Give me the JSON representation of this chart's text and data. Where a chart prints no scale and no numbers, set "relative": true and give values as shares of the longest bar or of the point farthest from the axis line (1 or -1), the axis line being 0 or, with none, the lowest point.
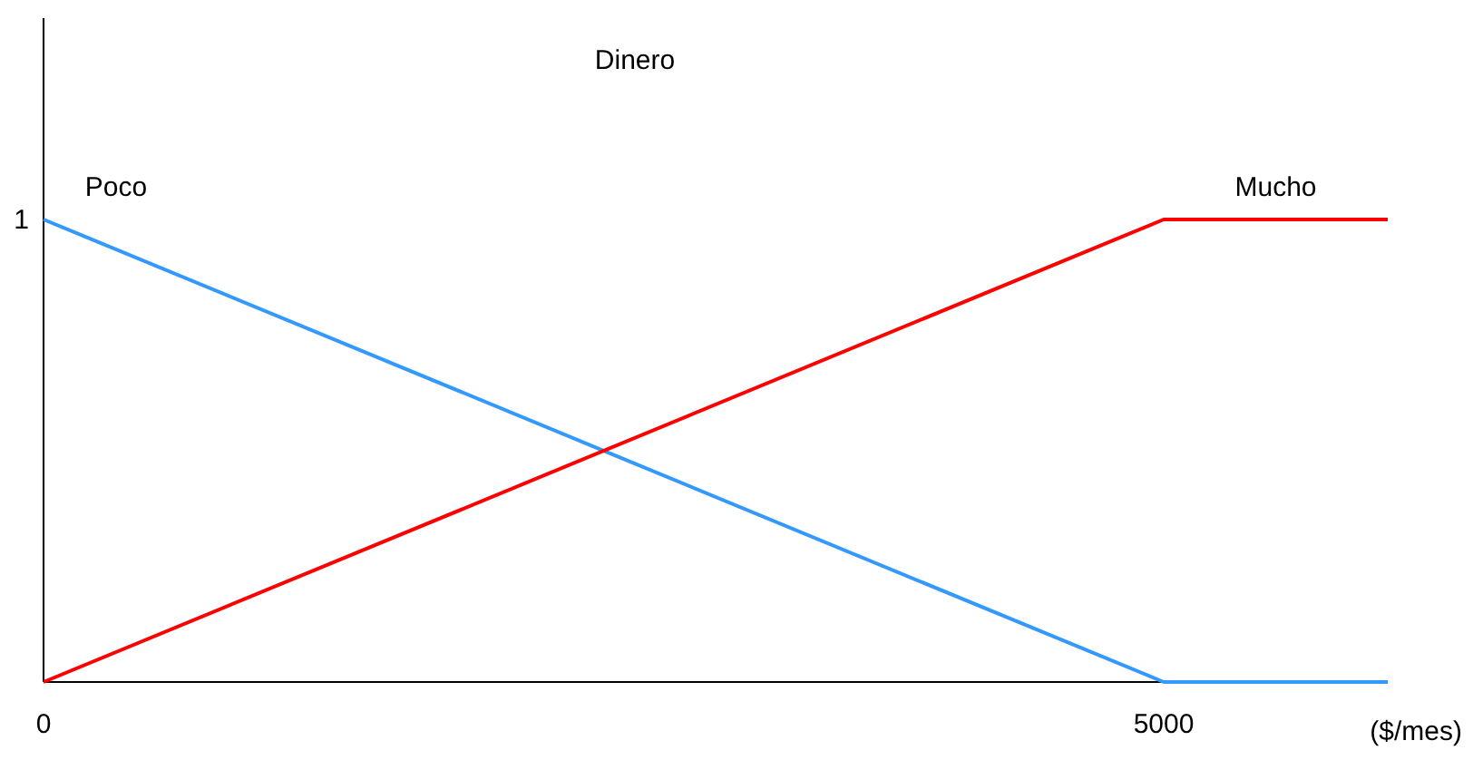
{
  "chart_data": {
    "type": "line",
    "title": "Dinero",
    "xlabel": "($/mes)",
    "relative": true,
    "annotations": [
      "1"
    ],
    "xlim": [
      0,
      6000
    ],
    "xticks": [
      0,
      5000
    ],
    "marker": "none",
    "line_style": "solid",
    "series": [
      {
        "name": "Poco",
        "color": "#3399ff",
        "x": [
          0,
          5000,
          6000
        ],
        "values": [
          1,
          0,
          0
        ]
      },
      {
        "name": "Mucho",
        "color": "#ff0000",
        "x": [
          0,
          5000,
          6000
        ],
        "values": [
          0,
          1,
          1
        ]
      }
    ]
  }
}
